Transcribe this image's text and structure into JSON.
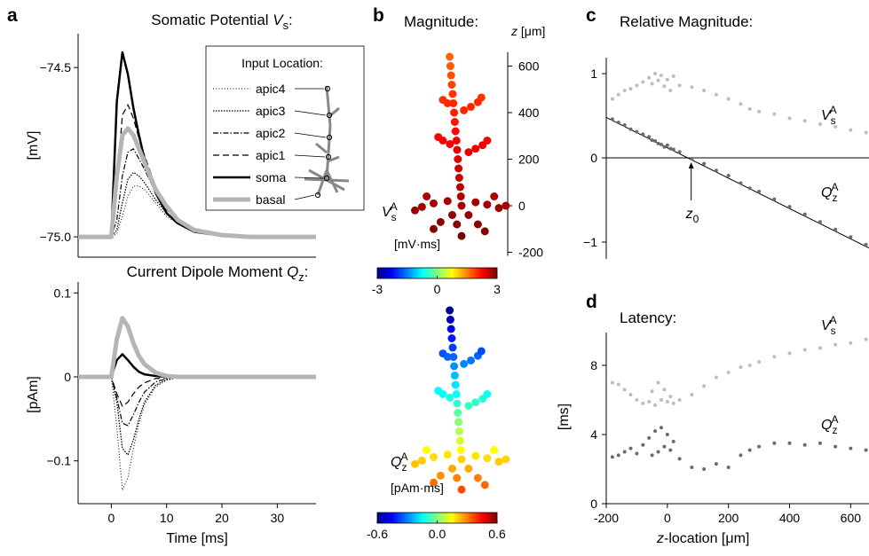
{
  "panels": [
    "a",
    "b",
    "c",
    "d"
  ],
  "chart_data": [
    {
      "type": "line",
      "title": {
        "text": "Somatic Potential ",
        "symbol": "V",
        "sub": "s",
        "end": ":"
      },
      "ylabel": "[mV]",
      "x": [
        -6,
        0,
        1,
        2,
        3,
        4,
        5,
        6,
        8,
        10,
        12,
        15,
        20,
        25,
        30,
        37
      ],
      "xlim": [
        -6,
        37
      ],
      "ylim": [
        -75.06,
        -74.4
      ],
      "yticks": [
        {
          "value": -75,
          "label": "−75.0"
        },
        {
          "value": -74.5,
          "label": "−74.5"
        }
      ],
      "legend": {
        "title": "Input Location:",
        "corner": "upper right"
      },
      "series": [
        {
          "name": "apic4",
          "color": "#000000",
          "style": "dotted",
          "width": 1,
          "values": [
            -75,
            -75,
            -74.99,
            -74.94,
            -74.88,
            -74.85,
            -74.85,
            -74.86,
            -74.9,
            -74.94,
            -74.96,
            -74.985,
            -74.997,
            -75,
            -75,
            -75
          ]
        },
        {
          "name": "apic3",
          "color": "#000000",
          "style": "dense-dotted",
          "width": 1.3,
          "values": [
            -75,
            -75,
            -74.98,
            -74.9,
            -74.83,
            -74.81,
            -74.82,
            -74.84,
            -74.89,
            -74.93,
            -74.96,
            -74.985,
            -74.997,
            -75,
            -75,
            -75
          ]
        },
        {
          "name": "apic2",
          "color": "#000000",
          "style": "dash-dot",
          "width": 1.2,
          "values": [
            -75,
            -75,
            -74.95,
            -74.82,
            -74.75,
            -74.74,
            -74.77,
            -74.8,
            -74.87,
            -74.92,
            -74.95,
            -74.98,
            -74.995,
            -75,
            -75,
            -75
          ]
        },
        {
          "name": "apic1",
          "color": "#000000",
          "style": "dashed",
          "width": 1.2,
          "values": [
            -75,
            -75,
            -74.85,
            -74.64,
            -74.61,
            -74.65,
            -74.71,
            -74.76,
            -74.85,
            -74.91,
            -74.95,
            -74.98,
            -74.995,
            -75,
            -75,
            -75
          ]
        },
        {
          "name": "soma",
          "color": "#000000",
          "style": "solid",
          "width": 2.5,
          "values": [
            -75,
            -75,
            -74.6,
            -74.455,
            -74.52,
            -74.62,
            -74.7,
            -74.77,
            -74.87,
            -74.93,
            -74.96,
            -74.985,
            -74.997,
            -75,
            -75,
            -75
          ]
        },
        {
          "name": "basal",
          "color": "#b5b5b5",
          "style": "solid",
          "width": 5,
          "values": [
            -75,
            -75,
            -74.82,
            -74.7,
            -74.68,
            -74.7,
            -74.74,
            -74.78,
            -74.86,
            -74.91,
            -74.95,
            -74.98,
            -74.995,
            -75,
            -75,
            -75
          ]
        }
      ]
    },
    {
      "type": "line",
      "title": {
        "text": "Current Dipole Moment ",
        "symbol": "Q",
        "sub": "z",
        "end": ":"
      },
      "ylabel": "[pAm]",
      "xlabel": "Time [ms]",
      "x": [
        -6,
        0,
        1,
        2,
        3,
        4,
        5,
        6,
        8,
        10,
        12,
        15,
        20,
        25,
        30,
        37
      ],
      "xlim": [
        -6,
        37
      ],
      "xticks": [
        0,
        10,
        20,
        30
      ],
      "ylim": [
        -0.151,
        0.113
      ],
      "yticks": [
        {
          "value": -0.1,
          "label": "−0.1"
        },
        0,
        0.1
      ],
      "series": [
        {
          "color": "#000000",
          "style": "dotted",
          "width": 1,
          "values": [
            0,
            0,
            -0.06,
            -0.135,
            -0.12,
            -0.085,
            -0.055,
            -0.033,
            -0.012,
            -0.004,
            -0.001,
            0,
            0,
            0,
            0,
            0
          ]
        },
        {
          "color": "#000000",
          "style": "dense-dotted",
          "width": 1.3,
          "values": [
            0,
            0,
            -0.03,
            -0.085,
            -0.093,
            -0.075,
            -0.05,
            -0.03,
            -0.01,
            -0.003,
            -0.001,
            0,
            0,
            0,
            0,
            0
          ]
        },
        {
          "color": "#000000",
          "style": "dash-dot",
          "width": 1.2,
          "values": [
            0,
            0,
            -0.025,
            -0.055,
            -0.058,
            -0.045,
            -0.03,
            -0.018,
            -0.006,
            -0.002,
            0,
            0,
            0,
            0,
            0,
            0
          ]
        },
        {
          "color": "#000000",
          "style": "dashed",
          "width": 1.2,
          "values": [
            0,
            0,
            -0.02,
            -0.035,
            -0.03,
            -0.02,
            -0.012,
            -0.007,
            -0.002,
            -0.001,
            0,
            0,
            0,
            0,
            0,
            0
          ]
        },
        {
          "color": "#000000",
          "style": "solid",
          "width": 2.5,
          "values": [
            0,
            0,
            0.02,
            0.027,
            0.02,
            0.012,
            0.006,
            0.003,
            0.001,
            0,
            0,
            0,
            0,
            0,
            0,
            0
          ]
        },
        {
          "color": "#b5b5b5",
          "style": "solid",
          "width": 5,
          "values": [
            0,
            0,
            0.045,
            0.07,
            0.06,
            0.04,
            0.025,
            0.015,
            0.005,
            0.001,
            0,
            0,
            0,
            0,
            0,
            0
          ]
        }
      ]
    },
    {
      "type": "morphology",
      "title": "Magnitude:",
      "ylabel": {
        "italic": "z",
        "rest": " [μm]"
      },
      "ylim": [
        -215,
        660
      ],
      "yticks": [
        -200,
        0,
        200,
        400,
        600
      ],
      "label": {
        "name": "V",
        "sub": "s",
        "sup": "A"
      },
      "clabel": "[mV·ms]",
      "clim": [
        -3,
        3
      ],
      "cticks": [
        -3,
        0,
        3
      ],
      "colormap": "jet",
      "x": [
        0,
        -3,
        -6,
        -10,
        -13,
        -16,
        -19,
        -22,
        -26,
        -29,
        -32,
        -35,
        -38,
        -42,
        -45,
        -48,
        -51,
        30,
        60,
        90,
        110,
        -50,
        -80,
        -100,
        10,
        40,
        70,
        85,
        -60,
        -80,
        -60,
        -120,
        -170,
        -200,
        60,
        110,
        160,
        190,
        -40,
        -90,
        -120,
        30,
        70,
        100,
        -20,
        0,
        140,
        -150
      ],
      "y": [
        0,
        40,
        80,
        120,
        160,
        200,
        240,
        280,
        320,
        360,
        400,
        440,
        480,
        520,
        560,
        600,
        640,
        230,
        245,
        260,
        280,
        265,
        280,
        295,
        410,
        425,
        445,
        465,
        440,
        455,
        20,
        10,
        -5,
        -20,
        15,
        5,
        -10,
        0,
        -40,
        -70,
        -100,
        -40,
        -80,
        -110,
        -80,
        -130,
        40,
        40
      ],
      "values": [
        2.8,
        2.73,
        2.66,
        2.58,
        2.51,
        2.44,
        2.37,
        2.3,
        2.22,
        2.15,
        2.08,
        2.01,
        1.94,
        1.86,
        1.79,
        1.72,
        1.65,
        2.39,
        2.36,
        2.33,
        2.3,
        2.32,
        2.3,
        2.27,
        2.06,
        2.04,
        2.0,
        1.96,
        2.01,
        1.98,
        2.76,
        2.78,
        2.81,
        2.84,
        2.77,
        2.79,
        2.82,
        2.8,
        2.87,
        2.93,
        2.98,
        2.87,
        2.94,
        3.0,
        2.94,
        3.03,
        2.73,
        2.73
      ]
    },
    {
      "type": "morphology",
      "ylim": [
        -215,
        660
      ],
      "label": {
        "name": "Q",
        "sub": "z",
        "sup": "A"
      },
      "clabel": "[pAm·ms]",
      "clim": [
        -0.6,
        0.6
      ],
      "cticks": [
        -0.6,
        {
          "value": 0,
          "label": "0.0"
        },
        0.6
      ],
      "colormap": "jet",
      "x": [
        0,
        -3,
        -6,
        -10,
        -13,
        -16,
        -19,
        -22,
        -26,
        -29,
        -32,
        -35,
        -38,
        -42,
        -45,
        -48,
        -51,
        30,
        60,
        90,
        110,
        -50,
        -80,
        -100,
        10,
        40,
        70,
        85,
        -60,
        -80,
        -60,
        -120,
        -170,
        -200,
        60,
        110,
        160,
        190,
        -40,
        -90,
        -120,
        30,
        70,
        100,
        -20,
        0,
        140,
        -150
      ],
      "y": [
        0,
        40,
        80,
        120,
        160,
        200,
        240,
        280,
        320,
        360,
        400,
        440,
        480,
        520,
        560,
        600,
        640,
        230,
        245,
        260,
        280,
        265,
        280,
        295,
        410,
        425,
        445,
        465,
        440,
        455,
        20,
        10,
        -5,
        -20,
        15,
        5,
        -10,
        0,
        -40,
        -70,
        -100,
        -40,
        -80,
        -110,
        -80,
        -130,
        40,
        40
      ],
      "values": [
        0.2,
        0.15,
        0.1,
        0.06,
        0.01,
        -0.04,
        -0.09,
        -0.14,
        -0.18,
        -0.23,
        -0.28,
        -0.33,
        -0.38,
        -0.42,
        -0.47,
        -0.52,
        -0.57,
        -0.08,
        -0.09,
        -0.11,
        -0.14,
        -0.12,
        -0.14,
        -0.15,
        -0.29,
        -0.31,
        -0.33,
        -0.36,
        -0.33,
        -0.35,
        0.18,
        0.19,
        0.21,
        0.22,
        0.18,
        0.19,
        0.21,
        0.2,
        0.25,
        0.28,
        0.32,
        0.25,
        0.3,
        0.33,
        0.3,
        0.36,
        0.15,
        0.15
      ]
    },
    {
      "type": "scatter",
      "title": "Relative Magnitude:",
      "xlim": [
        -200,
        660
      ],
      "ylim": [
        -1.2,
        1.19
      ],
      "yticks": [
        {
          "value": -1,
          "label": "−1"
        },
        0,
        1
      ],
      "series": [
        {
          "name": "V",
          "sub": "s",
          "sup": "A",
          "color": "#bdbdbd",
          "x": [
            -180,
            -160,
            -140,
            -120,
            -100,
            -80,
            -60,
            -50,
            -40,
            -30,
            -20,
            -10,
            0,
            10,
            20,
            40,
            80,
            120,
            160,
            200,
            240,
            270,
            300,
            350,
            400,
            450,
            500,
            550,
            600,
            650
          ],
          "values": [
            0.7,
            0.75,
            0.8,
            0.82,
            0.86,
            0.9,
            0.95,
            0.88,
            1.0,
            0.92,
            0.98,
            0.85,
            0.93,
            0.8,
            0.97,
            0.86,
            0.84,
            0.8,
            0.75,
            0.7,
            0.64,
            0.58,
            0.55,
            0.52,
            0.47,
            0.44,
            0.4,
            0.37,
            0.33,
            0.3
          ]
        },
        {
          "name": "Q",
          "sub": "z",
          "sup": "A",
          "color": "#6b6b6b",
          "x": [
            -180,
            -160,
            -140,
            -120,
            -100,
            -80,
            -60,
            -50,
            -40,
            -30,
            -20,
            -10,
            0,
            10,
            20,
            40,
            80,
            120,
            160,
            200,
            240,
            270,
            300,
            350,
            400,
            450,
            500,
            550,
            600,
            650
          ],
          "values": [
            0.46,
            0.42,
            0.39,
            0.34,
            0.31,
            0.28,
            0.25,
            0.21,
            0.2,
            0.17,
            0.16,
            0.13,
            0.15,
            0.11,
            0.1,
            0.07,
            -0.01,
            -0.07,
            -0.15,
            -0.21,
            -0.3,
            -0.36,
            -0.4,
            -0.49,
            -0.58,
            -0.67,
            -0.76,
            -0.85,
            -0.94,
            -1.03
          ]
        }
      ],
      "fit": {
        "x": [
          -200,
          660
        ],
        "values": [
          0.48,
          -1.07
        ]
      },
      "annotation": {
        "symbol": "z",
        "sub": "0",
        "x": 78
      }
    },
    {
      "type": "scatter",
      "title": "Latency:",
      "ylabel": "[ms]",
      "xlabel": {
        "italic": "z",
        "rest": "-location [μm]"
      },
      "xlim": [
        -200,
        660
      ],
      "xticks": [
        -200,
        0,
        200,
        400,
        600
      ],
      "ylim": [
        0,
        9.9
      ],
      "yticks": [
        0,
        4,
        8
      ],
      "series": [
        {
          "name": "V",
          "sub": "s",
          "sup": "A",
          "color": "#bdbdbd",
          "x": [
            -180,
            -160,
            -140,
            -120,
            -100,
            -80,
            -60,
            -50,
            -40,
            -30,
            -20,
            -10,
            0,
            10,
            20,
            40,
            80,
            120,
            160,
            200,
            240,
            270,
            300,
            350,
            400,
            450,
            500,
            550,
            600,
            650
          ],
          "values": [
            7.0,
            6.9,
            6.6,
            6.3,
            6.0,
            5.8,
            5.9,
            6.5,
            5.7,
            7.0,
            6.0,
            6.6,
            5.9,
            6.2,
            5.8,
            6.0,
            6.3,
            6.8,
            7.3,
            7.6,
            7.9,
            8.0,
            8.2,
            8.5,
            8.7,
            8.9,
            9.0,
            9.2,
            9.3,
            9.5
          ]
        },
        {
          "name": "Q",
          "sub": "z",
          "sup": "A",
          "color": "#6b6b6b",
          "x": [
            -180,
            -160,
            -140,
            -120,
            -100,
            -80,
            -60,
            -50,
            -40,
            -30,
            -20,
            -10,
            0,
            10,
            20,
            40,
            80,
            120,
            160,
            200,
            240,
            270,
            300,
            350,
            400,
            450,
            500,
            550,
            600,
            650
          ],
          "values": [
            2.7,
            2.8,
            3.0,
            3.2,
            2.9,
            3.4,
            3.8,
            2.8,
            4.2,
            3.0,
            4.4,
            3.3,
            4.0,
            3.1,
            3.6,
            2.6,
            2.1,
            2.0,
            2.3,
            2.1,
            2.8,
            3.1,
            3.3,
            3.5,
            3.5,
            3.4,
            3.5,
            3.3,
            3.2,
            3.1
          ]
        }
      ]
    }
  ]
}
